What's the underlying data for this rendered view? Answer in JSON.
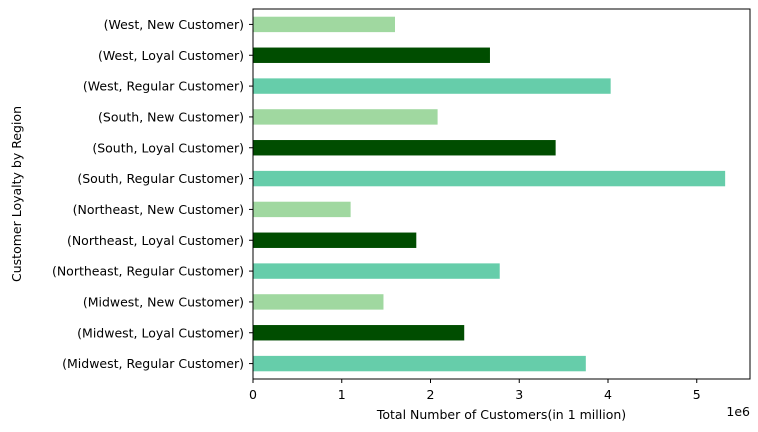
{
  "chart_data": {
    "type": "bar",
    "orientation": "horizontal",
    "categories": [
      "(Midwest, Regular Customer)",
      "(Midwest, Loyal Customer)",
      "(Midwest, New Customer)",
      "(Northeast, Regular Customer)",
      "(Northeast, Loyal Customer)",
      "(Northeast, New Customer)",
      "(South, Regular Customer)",
      "(South, Loyal Customer)",
      "(South, New Customer)",
      "(West, Regular Customer)",
      "(West, Loyal Customer)",
      "(West, New Customer)"
    ],
    "values": [
      3750000,
      2380000,
      1470000,
      2780000,
      1840000,
      1100000,
      5320000,
      3410000,
      2080000,
      4030000,
      2670000,
      1600000
    ],
    "bar_colors": [
      "#66cdaa",
      "#004d00",
      "#a0d8a0",
      "#66cdaa",
      "#004d00",
      "#a0d8a0",
      "#66cdaa",
      "#004d00",
      "#a0d8a0",
      "#66cdaa",
      "#004d00",
      "#a0d8a0"
    ],
    "xlabel": "Total Number of Customers(in 1 million)",
    "ylabel": "Customer Loyalty by Region",
    "xlim": [
      0,
      5600000
    ],
    "xticks": [
      0,
      1000000,
      2000000,
      3000000,
      4000000,
      5000000
    ],
    "xtick_labels": [
      "0",
      "1",
      "2",
      "3",
      "4",
      "5"
    ],
    "x_offset_label": "1e6",
    "grid": false,
    "legend": false
  }
}
